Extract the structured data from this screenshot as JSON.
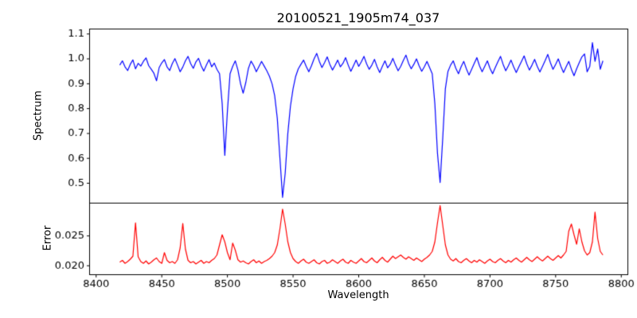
{
  "figure": {
    "title": "20100521_1905m74_037",
    "xlabel": "Wavelength",
    "ylabel_top": "Spectrum",
    "ylabel_bottom": "Error",
    "background": "#ffffff",
    "spine_color": "#000000"
  },
  "chart_data": {
    "type": "line",
    "title": "20100521_1905m74_037",
    "xlabel": "Wavelength",
    "grid": false,
    "legend": null,
    "xlim": [
      8395,
      8805
    ],
    "xticks": [
      8400,
      8450,
      8500,
      8550,
      8600,
      8650,
      8700,
      8750,
      8800
    ],
    "xtick_labels": [
      "8400",
      "8450",
      "8500",
      "8550",
      "8600",
      "8650",
      "8700",
      "8750",
      "8800"
    ],
    "panels": [
      {
        "name": "spectrum",
        "ylabel": "Spectrum",
        "color": "#0000ff",
        "ylim": [
          0.42,
          1.12
        ],
        "yticks": [
          0.5,
          0.6,
          0.7,
          0.8,
          0.9,
          1.0,
          1.1
        ],
        "ytick_labels": [
          "0.5",
          "0.6",
          "0.7",
          "0.8",
          "0.9",
          "1.0",
          "1.1"
        ],
        "x_start": 8418,
        "x_step": 2,
        "values": [
          0.975,
          0.992,
          0.968,
          0.953,
          0.978,
          0.996,
          0.96,
          0.982,
          0.971,
          0.99,
          1.004,
          0.973,
          0.958,
          0.942,
          0.912,
          0.965,
          0.984,
          0.997,
          0.968,
          0.953,
          0.981,
          1.001,
          0.975,
          0.948,
          0.967,
          0.992,
          1.01,
          0.981,
          0.962,
          0.988,
          1.002,
          0.972,
          0.951,
          0.975,
          0.997,
          0.968,
          0.983,
          0.958,
          0.94,
          0.82,
          0.612,
          0.79,
          0.94,
          0.97,
          0.992,
          0.955,
          0.9,
          0.862,
          0.905,
          0.962,
          0.991,
          0.973,
          0.948,
          0.969,
          0.99,
          0.971,
          0.952,
          0.93,
          0.9,
          0.852,
          0.76,
          0.6,
          0.443,
          0.54,
          0.7,
          0.81,
          0.88,
          0.93,
          0.96,
          0.978,
          0.995,
          0.97,
          0.948,
          0.972,
          1.0,
          1.022,
          0.99,
          0.965,
          0.985,
          1.008,
          0.978,
          0.955,
          0.974,
          0.995,
          0.968,
          0.982,
          1.005,
          0.975,
          0.95,
          0.972,
          0.995,
          0.97,
          0.988,
          1.01,
          0.98,
          0.958,
          0.975,
          0.998,
          0.968,
          0.945,
          0.97,
          0.992,
          0.964,
          0.978,
          1.002,
          0.975,
          0.952,
          0.97,
          0.994,
          1.015,
          0.982,
          0.96,
          0.978,
          1.0,
          0.972,
          0.95,
          0.968,
          0.99,
          0.965,
          0.94,
          0.82,
          0.62,
          0.503,
          0.68,
          0.88,
          0.95,
          0.975,
          0.992,
          0.962,
          0.94,
          0.968,
          0.99,
          0.96,
          0.935,
          0.958,
          0.982,
          1.005,
          0.972,
          0.948,
          0.97,
          0.992,
          0.962,
          0.94,
          0.965,
          0.988,
          1.01,
          0.978,
          0.952,
          0.972,
          0.995,
          0.968,
          0.945,
          0.968,
          0.99,
          1.012,
          0.98,
          0.955,
          0.975,
          0.998,
          0.97,
          0.947,
          0.97,
          0.993,
          1.018,
          0.985,
          0.958,
          0.978,
          1.0,
          0.97,
          0.945,
          0.968,
          0.99,
          0.958,
          0.932,
          0.96,
          0.985,
          1.008,
          1.02,
          0.948,
          0.97,
          1.065,
          0.99,
          1.04,
          0.958,
          0.992
        ]
      },
      {
        "name": "error",
        "ylabel": "Error",
        "color": "#ff0000",
        "ylim": [
          0.0185,
          0.0305
        ],
        "yticks": [
          0.02,
          0.025
        ],
        "ytick_labels": [
          "0.020",
          "0.025"
        ],
        "x_start": 8418,
        "x_step": 2,
        "values": [
          0.0206,
          0.0209,
          0.0204,
          0.0207,
          0.0211,
          0.0216,
          0.0272,
          0.0215,
          0.0207,
          0.0204,
          0.0208,
          0.0203,
          0.0206,
          0.021,
          0.0213,
          0.0207,
          0.0204,
          0.0222,
          0.0209,
          0.0205,
          0.0207,
          0.0204,
          0.021,
          0.023,
          0.0271,
          0.0228,
          0.0209,
          0.0205,
          0.0207,
          0.0203,
          0.0206,
          0.0209,
          0.0204,
          0.0207,
          0.0205,
          0.0209,
          0.0212,
          0.0218,
          0.0235,
          0.0252,
          0.024,
          0.0222,
          0.021,
          0.0238,
          0.0226,
          0.021,
          0.0206,
          0.0208,
          0.0205,
          0.0203,
          0.0207,
          0.021,
          0.0205,
          0.0208,
          0.0204,
          0.0207,
          0.0209,
          0.0212,
          0.0216,
          0.0222,
          0.0235,
          0.0262,
          0.0295,
          0.027,
          0.024,
          0.0222,
          0.0212,
          0.0207,
          0.0204,
          0.0208,
          0.0211,
          0.0206,
          0.0204,
          0.0207,
          0.021,
          0.0205,
          0.0203,
          0.0207,
          0.0209,
          0.0204,
          0.0206,
          0.021,
          0.0207,
          0.0204,
          0.0208,
          0.0211,
          0.0206,
          0.0204,
          0.0209,
          0.0206,
          0.0204,
          0.0208,
          0.0212,
          0.0207,
          0.0205,
          0.0209,
          0.0213,
          0.0208,
          0.0205,
          0.021,
          0.0214,
          0.0209,
          0.0206,
          0.0211,
          0.0216,
          0.0212,
          0.0215,
          0.0218,
          0.0214,
          0.0211,
          0.0215,
          0.0212,
          0.0209,
          0.0213,
          0.021,
          0.0207,
          0.0211,
          0.0214,
          0.0218,
          0.0224,
          0.024,
          0.0272,
          0.0301,
          0.0268,
          0.0235,
          0.0218,
          0.0211,
          0.0208,
          0.0212,
          0.0207,
          0.0205,
          0.0209,
          0.0212,
          0.0208,
          0.0205,
          0.0209,
          0.0206,
          0.021,
          0.0207,
          0.0204,
          0.0208,
          0.0211,
          0.0207,
          0.0205,
          0.0209,
          0.0212,
          0.0208,
          0.0205,
          0.0209,
          0.0206,
          0.021,
          0.0213,
          0.0209,
          0.0206,
          0.021,
          0.0214,
          0.021,
          0.0207,
          0.0211,
          0.0215,
          0.0211,
          0.0208,
          0.0212,
          0.0216,
          0.0212,
          0.0209,
          0.0213,
          0.0217,
          0.0213,
          0.0218,
          0.0224,
          0.0258,
          0.027,
          0.0252,
          0.0236,
          0.0262,
          0.024,
          0.0225,
          0.0218,
          0.0222,
          0.024,
          0.029,
          0.0246,
          0.0224,
          0.0218
        ]
      }
    ]
  }
}
